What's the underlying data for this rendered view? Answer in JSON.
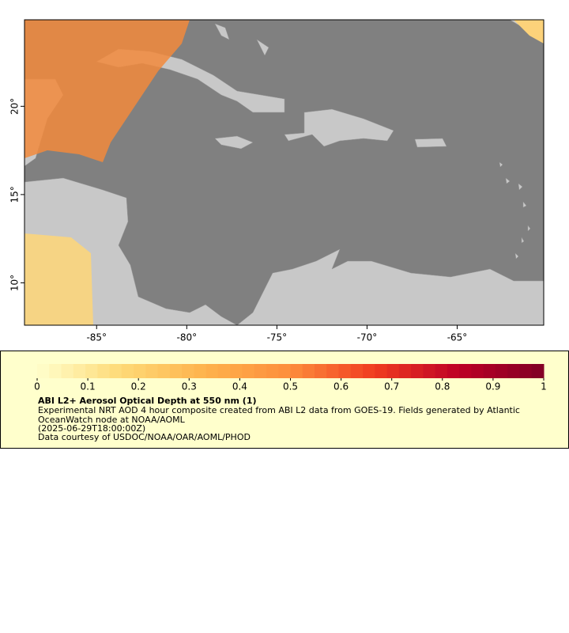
{
  "chart_data": {
    "type": "map",
    "xlim": [
      -89,
      -60.2
    ],
    "ylim": [
      7.6,
      24.9
    ],
    "xticks": [
      {
        "value": -85,
        "label": "-85°"
      },
      {
        "value": -80,
        "label": "-80°"
      },
      {
        "value": -75,
        "label": "-75°"
      },
      {
        "value": -70,
        "label": "-70°"
      },
      {
        "value": -65,
        "label": "-65°"
      }
    ],
    "yticks": [
      {
        "value": 10,
        "label": "10°"
      },
      {
        "value": 15,
        "label": "15°"
      },
      {
        "value": 20,
        "label": "20°"
      }
    ],
    "colorbar": {
      "lim": [
        0,
        1
      ],
      "ticks": [
        0,
        0.1,
        0.2,
        0.3,
        0.4,
        0.5,
        0.6,
        0.7,
        0.8,
        0.9,
        1
      ],
      "colors": [
        "#ffffcc",
        "#fed976",
        "#feb24c",
        "#fd8d3c",
        "#f03b20",
        "#bd0026",
        "#800026"
      ]
    },
    "legend": {
      "title": "ABI L2+ Aerosol Optical Depth at 550 nm (1)",
      "description": "Experimental NRT AOD 4 hour composite created from ABI L2 data from GOES-19. Fields generated by Atlantic OceanWatch node at NOAA/AOML",
      "time": "(2025-06-29T18:00:00Z)",
      "credit": "Data courtesy of USDOC/NOAA/OAR/AOML/PHOD"
    }
  }
}
